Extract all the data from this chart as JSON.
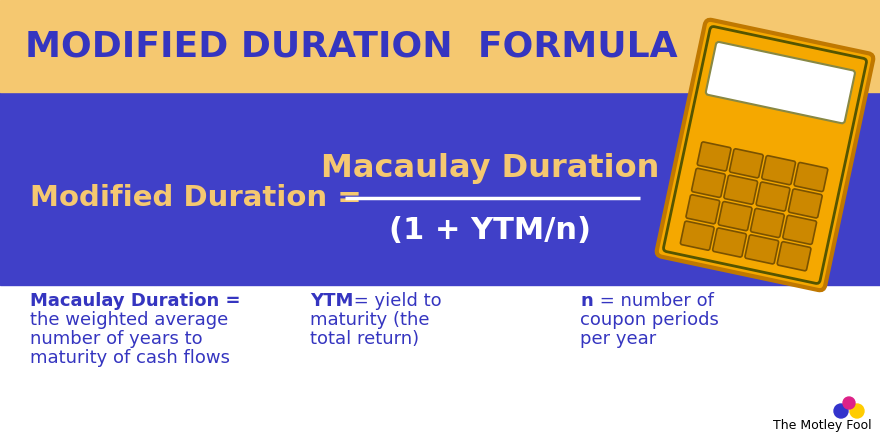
{
  "title": "MODIFIED DURATION  FORMULA",
  "title_color": "#3535C0",
  "header_bg": "#F5C870",
  "main_bg": "#4040C8",
  "white_bg": "#FFFFFF",
  "formula_left": "Modified Duration =",
  "formula_numerator": "Macaulay Duration",
  "formula_denominator": "(1 + YTM/n)",
  "formula_left_color": "#F5C870",
  "formula_num_color": "#F5C870",
  "formula_den_color": "#FFFFFF",
  "def_color": "#3535C0",
  "def1_line1": "Macaulay Duration =",
  "def1_line2": "the weighted average",
  "def1_line3": "number of years to",
  "def1_line4": "maturity of cash flows",
  "def2_line1_bold": "YTM",
  "def2_line1_rest": " = yield to",
  "def2_line2": "maturity (the",
  "def2_line3": "total return)",
  "def3_line1_bold": "n",
  "def3_line1_rest": " = number of",
  "def3_line2": "coupon periods",
  "def3_line3": "per year",
  "motley_fool_text": "The Motley Fool",
  "calc_body_color": "#F5A800",
  "calc_edge_color": "#C07800",
  "calc_btn_color": "#CC8800",
  "calc_btn_dark": "#7A5200",
  "fig_width": 8.8,
  "fig_height": 4.4,
  "dpi": 100
}
